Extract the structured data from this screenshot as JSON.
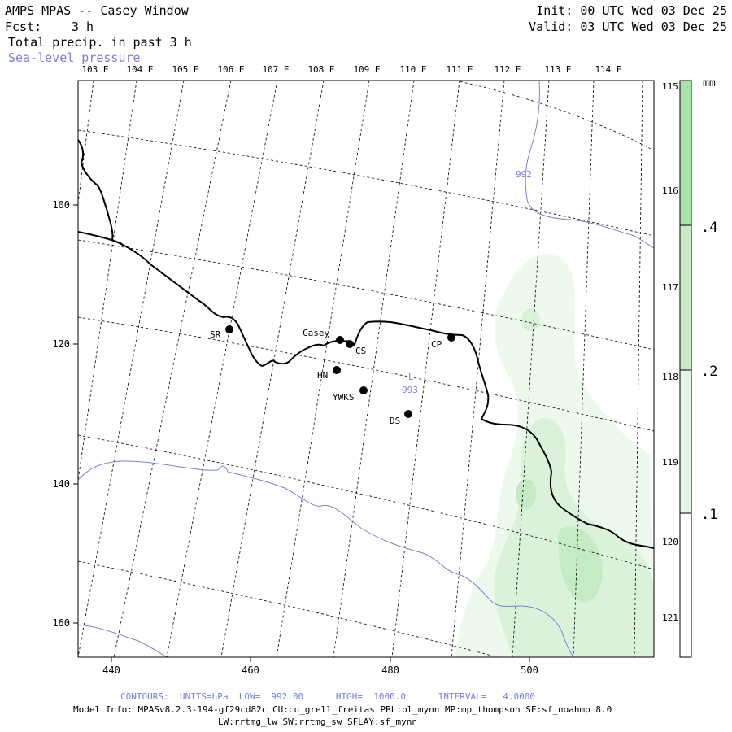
{
  "header": {
    "title": "AMPS MPAS -- Casey Window",
    "fcst_label": "Fcst:",
    "fcst_value": "3 h",
    "field_label": "Total precip. in past 3 h",
    "contour_field": "Sea-level pressure",
    "init": "Init: 00 UTC Wed 03 Dec 25",
    "valid": "Valid: 03 UTC Wed 03 Dec 25"
  },
  "colors": {
    "coastline": "#000000",
    "isobar": "#7a80d6",
    "gridlines": "#000000",
    "precip_light": "#eef9ee",
    "precip_mid": "#d3f0d3",
    "precip_high": "#bfe9bf",
    "colorbar_top": "#a8e4a8"
  },
  "map": {
    "x_ticks": [
      "440",
      "460",
      "480",
      "500"
    ],
    "y_ticks": [
      "100",
      "120",
      "140",
      "160"
    ],
    "lon_labels": [
      "103 E",
      "104 E",
      "105 E",
      "106 E",
      "107 E",
      "108 E",
      "109 E",
      "110 E",
      "111 E",
      "112 E",
      "113 E",
      "114 E"
    ],
    "right_lon_labels": [
      "115 E",
      "116 E",
      "117 E",
      "118 E",
      "119 E",
      "120 E",
      "121 E"
    ],
    "stations": [
      {
        "name": "SR"
      },
      {
        "name": "Casey"
      },
      {
        "name": "CS"
      },
      {
        "name": "CP"
      },
      {
        "name": "HN"
      },
      {
        "name": "YWKS"
      },
      {
        "name": "DS"
      }
    ],
    "low_center": {
      "symbol": "L",
      "value": "993"
    },
    "isobar_label": "992"
  },
  "colorbar": {
    "unit": "mm",
    "labels": [
      ".4",
      ".2",
      ".1"
    ]
  },
  "footer": {
    "contours": "CONTOURS:  UNITS=hPa  LOW=  992.00      HIGH=  1000.0      INTERVAL=   4.0000",
    "model_info": "Model Info: MPASv8.2.3-194-gf29cd82c CU:cu_grell_freitas PBL:bl_mynn MP:mp_thompson SF:sf_noahmp 8.0",
    "model_info2": "LW:rrtmg_lw SW:rrtmg_sw SFLAY:sf_mynn"
  }
}
